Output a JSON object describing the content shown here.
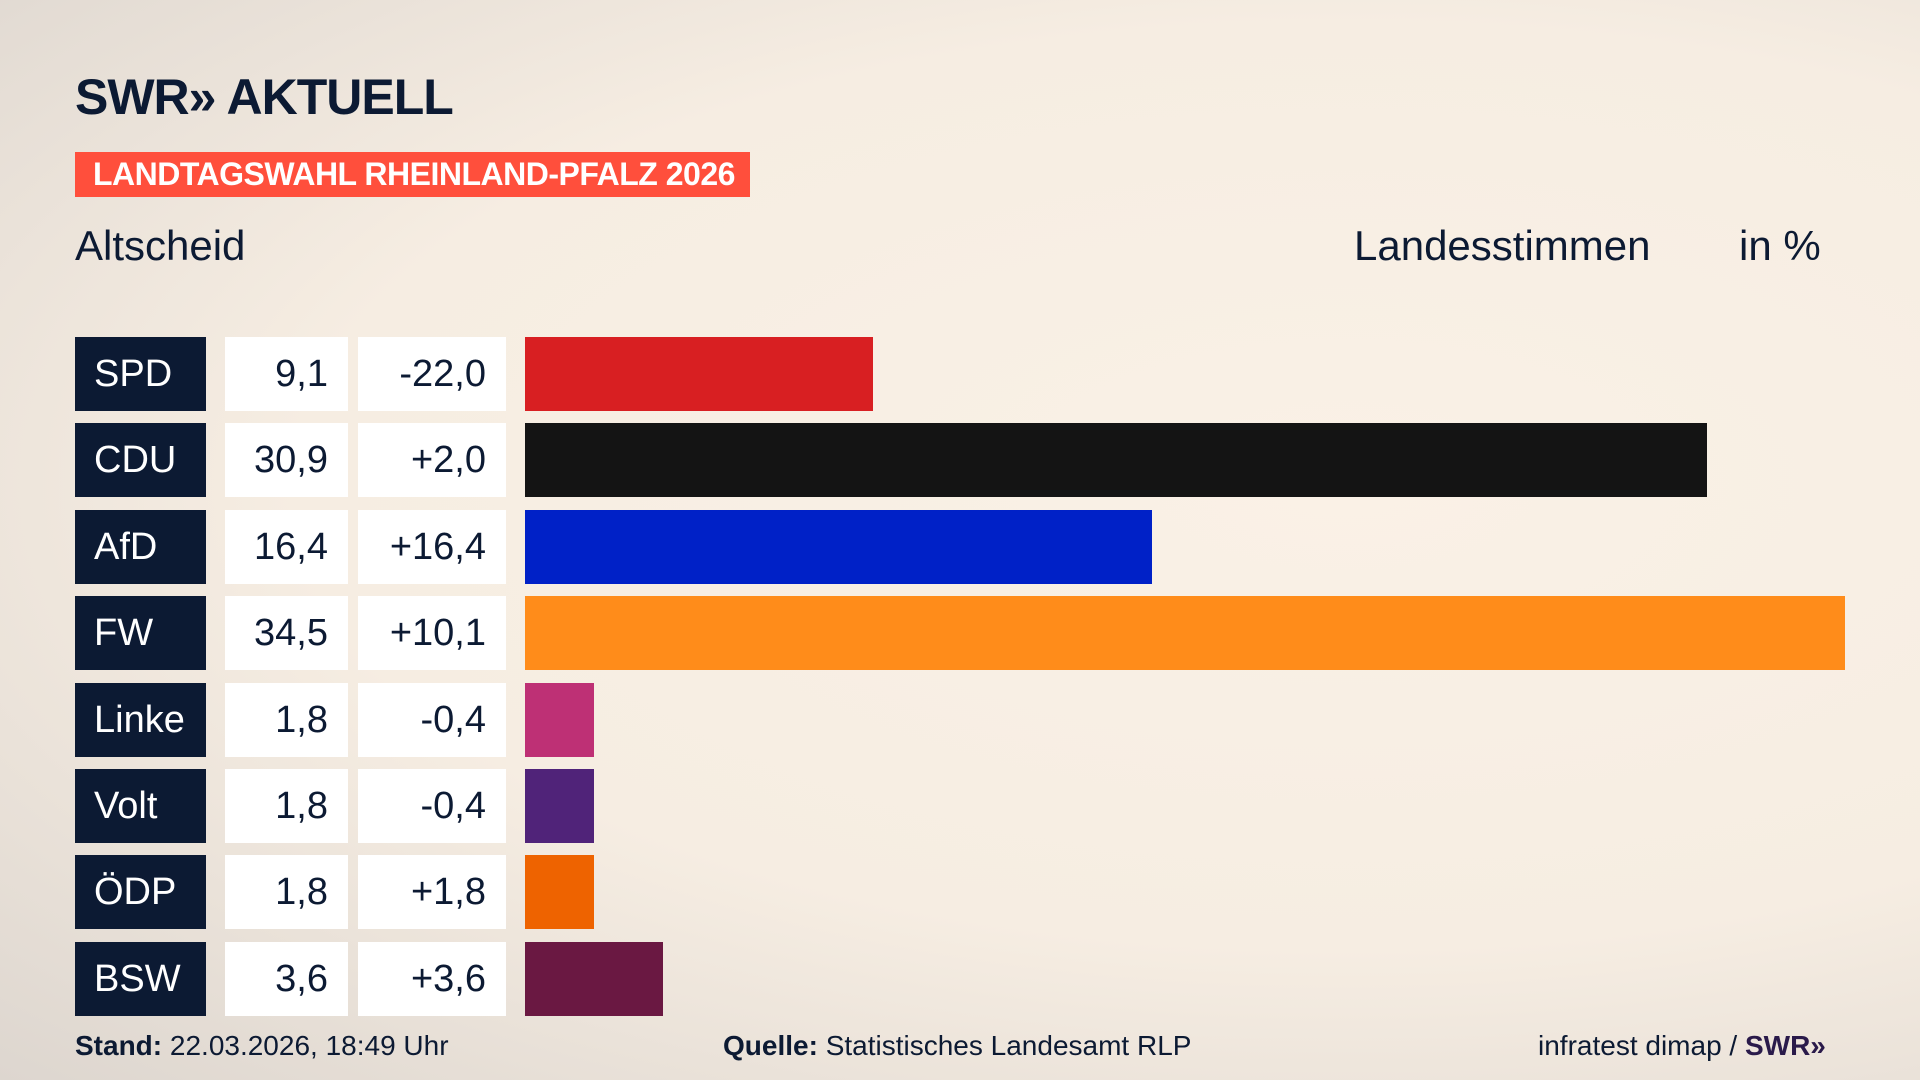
{
  "header": {
    "logo": "SWR» AKTUELL",
    "banner": "LANDTAGSWAHL RHEINLAND-PFALZ 2026",
    "location": "Altscheid",
    "vote_type": "Landesstimmen",
    "unit": "in %"
  },
  "chart_data": {
    "type": "bar",
    "orientation": "horizontal",
    "xlim": [
      0,
      34.5
    ],
    "categories": [
      "SPD",
      "CDU",
      "AfD",
      "FW",
      "Linke",
      "Volt",
      "ÖDP",
      "BSW"
    ],
    "values": [
      9.1,
      30.9,
      16.4,
      34.5,
      1.8,
      1.8,
      1.8,
      3.6
    ],
    "value_labels": [
      "9,1",
      "30,9",
      "16,4",
      "34,5",
      "1,8",
      "1,8",
      "1,8",
      "3,6"
    ],
    "diff_labels": [
      "-22,0",
      "+2,0",
      "+16,4",
      "+10,1",
      "-0,4",
      "-0,4",
      "+1,8",
      "+3,6"
    ],
    "colors": [
      "#d81f22",
      "#141414",
      "#0021c7",
      "#ff8c1a",
      "#be3075",
      "#502379",
      "#ee6300",
      "#6a1842"
    ]
  },
  "footer": {
    "stand_label": "Stand:",
    "stand_value": "22.03.2026, 18:49 Uhr",
    "source_label": "Quelle:",
    "source_value": "Statistisches Landesamt RLP",
    "credit": "infratest dimap / ",
    "credit_logo": "SWR»"
  }
}
